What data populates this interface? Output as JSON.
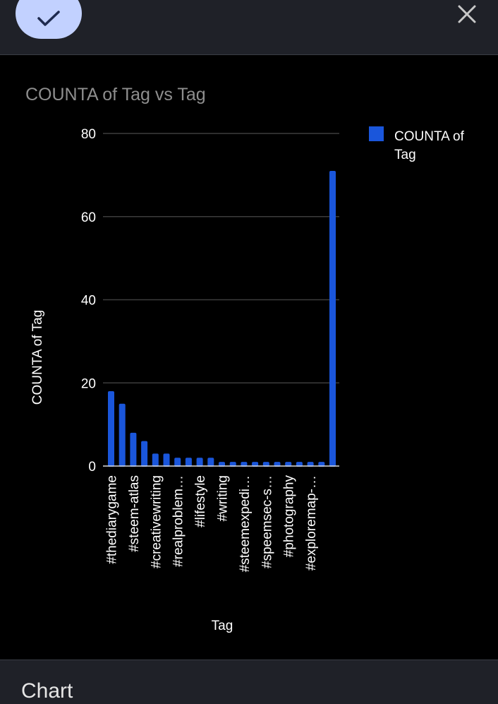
{
  "toolbar": {
    "done_icon": "check-icon",
    "close_icon": "close-icon"
  },
  "colors": {
    "accent": "#c2d1ff",
    "series": "#1a56db",
    "background": "#000000",
    "panel": "#1f2128"
  },
  "panel": {
    "section_title": "Chart"
  },
  "chart_data": {
    "type": "bar",
    "title": "COUNTA of Tag vs Tag",
    "xlabel": "Tag",
    "ylabel": "COUNTA of Tag",
    "ylim": [
      0,
      80
    ],
    "yticks": [
      0,
      20,
      40,
      60,
      80
    ],
    "grid": true,
    "legend": "right",
    "series": [
      {
        "name": "COUNTA of Tag",
        "color": "#1a56db",
        "values": [
          18,
          15,
          8,
          6,
          3,
          3,
          2,
          2,
          2,
          2,
          1,
          1,
          1,
          1,
          1,
          1,
          1,
          1,
          1,
          1,
          71
        ]
      }
    ],
    "categories": [
      "#thediarygame",
      "",
      "#steem-atlas",
      "",
      "#creativewriting",
      "",
      "#realproblem…",
      "",
      "#lifestyle",
      "",
      "#writing",
      "",
      "#steemexpedi…",
      "",
      "#speemsec-s…",
      "",
      "#photography",
      "",
      "#exploremap-…",
      "",
      ""
    ]
  }
}
